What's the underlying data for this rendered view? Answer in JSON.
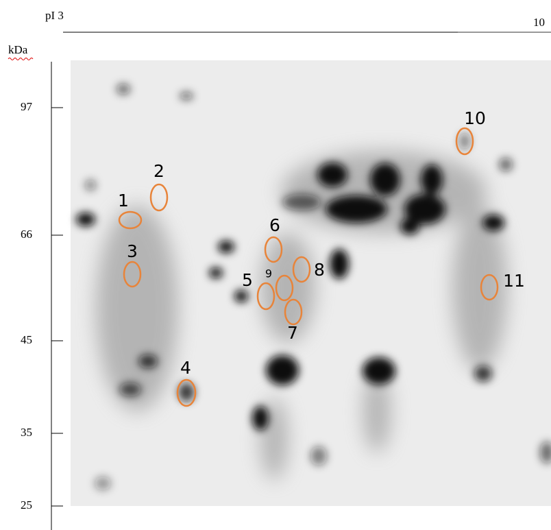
{
  "header": {
    "left_label": "pI 3",
    "right_label": "10"
  },
  "y_axis": {
    "title": "kDa",
    "labels": [
      "97",
      "66",
      "45",
      "35",
      "25"
    ]
  },
  "spots": [
    {
      "label": "1"
    },
    {
      "label": "2"
    },
    {
      "label": "3"
    },
    {
      "label": "4"
    },
    {
      "label": "5"
    },
    {
      "label": "6"
    },
    {
      "label": "7"
    },
    {
      "label": "8"
    },
    {
      "label": "9"
    },
    {
      "label": "10"
    },
    {
      "label": "11"
    }
  ]
}
